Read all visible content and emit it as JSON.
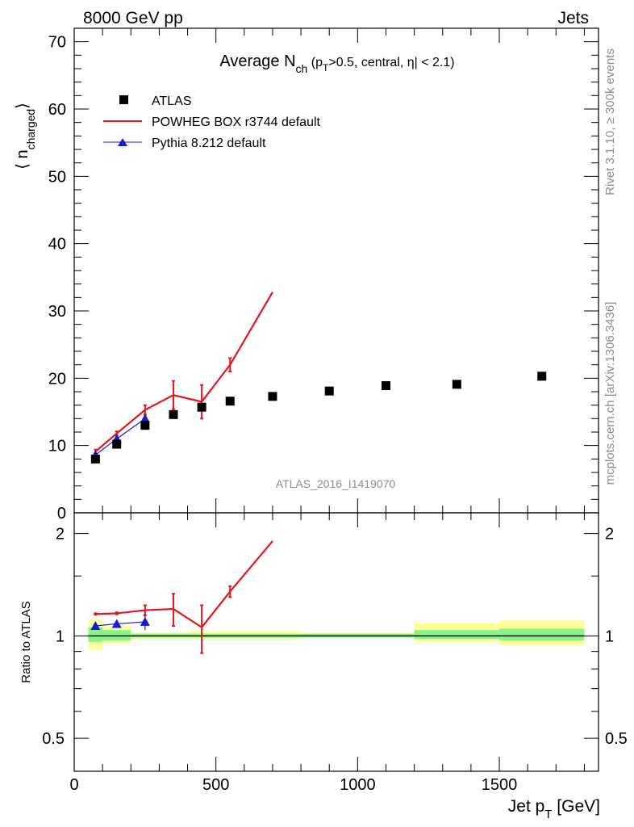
{
  "header": {
    "left": "8000 GeV pp",
    "right": "Jets"
  },
  "side_labels": {
    "rivet": "Rivet 3.1.10, ≥ 300k events",
    "mcplots": "mcplots.cern.ch [arXiv:1306.3436]"
  },
  "watermark": "ATLAS_2016_I1419070",
  "colors": {
    "data": "#000000",
    "powheg": "#e8141b",
    "pythia": "#1a1acc",
    "band_inner": "#87f587",
    "band_outer": "#ffff99"
  },
  "chart_data": [
    {
      "type": "scatter",
      "title_main": "Average N",
      "title_sub": "ch",
      "title_rest_a": " (p",
      "title_rest_sub": "T",
      "title_rest_b": ">0.5, central, η| < 2.1)",
      "ylabel_main": "⟨ n",
      "ylabel_sub": "charged",
      "ylabel_close": "⟩",
      "xlim": [
        0,
        1850
      ],
      "ylim": [
        0,
        72
      ],
      "yticks": [
        0,
        10,
        20,
        30,
        40,
        50,
        60,
        70
      ],
      "legend": {
        "position": "top-left",
        "entries": [
          "ATLAS",
          "POWHEG BOX r3744 default",
          "Pythia 8.212 default"
        ]
      },
      "series": [
        {
          "name": "ATLAS",
          "marker": "square",
          "x": [
            75,
            150,
            250,
            350,
            450,
            550,
            700,
            900,
            1100,
            1350,
            1650
          ],
          "y": [
            8.0,
            10.2,
            13.0,
            14.6,
            15.7,
            16.6,
            17.3,
            18.1,
            18.9,
            19.1,
            20.3
          ]
        },
        {
          "name": "POWHEG BOX r3744 default",
          "marker": "line",
          "x": [
            75,
            150,
            250,
            350,
            450,
            550,
            700
          ],
          "y": [
            9.1,
            11.8,
            15.3,
            17.5,
            16.5,
            22.0,
            32.8
          ],
          "err": [
            0.3,
            0.3,
            0.7,
            2.1,
            2.5,
            1.0,
            0.0
          ]
        },
        {
          "name": "Pythia 8.212 default",
          "marker": "triangle",
          "x": [
            75,
            150,
            250
          ],
          "y": [
            8.6,
            11.0,
            14.0
          ],
          "err": [
            0.3,
            0.3,
            0.5
          ]
        }
      ]
    },
    {
      "type": "scatter",
      "ylabel": "Ratio to ATLAS",
      "xlabel_main": "Jet p",
      "xlabel_sub": "T",
      "xlabel_unit": " [GeV]",
      "xlim": [
        0,
        1850
      ],
      "ylim": [
        0.4,
        2.3
      ],
      "log_y": true,
      "xticks": [
        "0",
        "500",
        "1000",
        "1500"
      ],
      "xtick_values": [
        0,
        500,
        1000,
        1500
      ],
      "yticks": [
        "0.5",
        "1",
        "2"
      ],
      "ytick_values": [
        0.5,
        1,
        2
      ],
      "bands": [
        {
          "x0": 50,
          "x1": 100,
          "inner": [
            0.96,
            1.06
          ],
          "outer": [
            0.91,
            1.12
          ]
        },
        {
          "x0": 100,
          "x1": 200,
          "inner": [
            0.97,
            1.04
          ],
          "outer": [
            0.95,
            1.07
          ]
        },
        {
          "x0": 200,
          "x1": 300,
          "inner": [
            0.99,
            1.015
          ],
          "outer": [
            0.98,
            1.025
          ]
        },
        {
          "x0": 300,
          "x1": 400,
          "inner": [
            0.99,
            1.015
          ],
          "outer": [
            0.98,
            1.025
          ]
        },
        {
          "x0": 400,
          "x1": 500,
          "inner": [
            0.99,
            1.015
          ],
          "outer": [
            0.98,
            1.03
          ]
        },
        {
          "x0": 500,
          "x1": 600,
          "inner": [
            0.99,
            1.015
          ],
          "outer": [
            0.98,
            1.03
          ]
        },
        {
          "x0": 600,
          "x1": 800,
          "inner": [
            0.99,
            1.015
          ],
          "outer": [
            0.98,
            1.03
          ]
        },
        {
          "x0": 800,
          "x1": 1000,
          "inner": [
            0.99,
            1.015
          ],
          "outer": [
            0.985,
            1.025
          ]
        },
        {
          "x0": 1000,
          "x1": 1200,
          "inner": [
            0.99,
            1.015
          ],
          "outer": [
            0.985,
            1.025
          ]
        },
        {
          "x0": 1200,
          "x1": 1500,
          "inner": [
            0.98,
            1.04
          ],
          "outer": [
            0.96,
            1.09
          ]
        },
        {
          "x0": 1500,
          "x1": 1800,
          "inner": [
            0.97,
            1.05
          ],
          "outer": [
            0.94,
            1.11
          ]
        }
      ],
      "series": [
        {
          "name": "POWHEG BOX r3744 default",
          "x": [
            75,
            150,
            250,
            350,
            450,
            550,
            700
          ],
          "y": [
            1.16,
            1.165,
            1.19,
            1.2,
            1.06,
            1.35,
            1.9
          ],
          "err": [
            0.006,
            0.008,
            0.04,
            0.13,
            0.17,
            0.05,
            0.0
          ]
        },
        {
          "name": "Pythia 8.212 default",
          "x": [
            75,
            150,
            250
          ],
          "y": [
            1.07,
            1.085,
            1.1
          ],
          "err": [
            0.01,
            0.01,
            0.06
          ]
        }
      ]
    }
  ]
}
